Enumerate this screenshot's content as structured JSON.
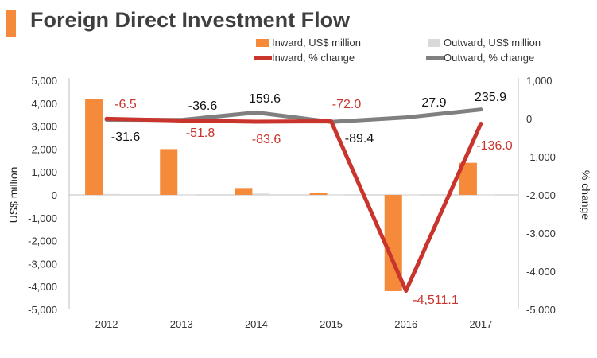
{
  "title": "Foreign Direct Investment Flow",
  "colors": {
    "accent": "#f58a3a",
    "inward": "#f58a3a",
    "outward": "#d9d9d9",
    "inward_line": "#c9342c",
    "outward_line": "#808080"
  },
  "chart_data": {
    "type": "bar",
    "title": "Foreign Direct Investment Flow",
    "categories": [
      "2012",
      "2013",
      "2014",
      "2015",
      "2016",
      "2017"
    ],
    "ylabel": "US$ million",
    "y2label": "% change",
    "ylim": [
      -5000,
      5000
    ],
    "y2lim": [
      -5000,
      1000
    ],
    "yticks": [
      "5,000",
      "4,000",
      "3,000",
      "2,000",
      "1,000",
      "0",
      "-1,000",
      "-2,000",
      "-3,000",
      "-4,000",
      "-5,000"
    ],
    "y2ticks": [
      "1,000",
      "0",
      "-1,000",
      "-2,000",
      "-3,000",
      "-4,000",
      "-5,000"
    ],
    "legend_position": "top",
    "series": [
      {
        "name": "Inward, US$ million",
        "kind": "bar",
        "axis": "left",
        "color": "#f58a3a",
        "values": [
          4200,
          2000,
          300,
          80,
          -4200,
          1400
        ]
      },
      {
        "name": "Outward, US$ million",
        "kind": "bar",
        "axis": "left",
        "color": "#d9d9d9",
        "values": [
          40,
          10,
          60,
          10,
          10,
          10
        ]
      },
      {
        "name": "Inward, % change",
        "kind": "line",
        "axis": "right",
        "color": "#c9342c",
        "values": [
          -6.5,
          -51.8,
          -83.6,
          -72.0,
          -4511.1,
          -136.0
        ],
        "labels": [
          "-6.5",
          "-51.8",
          "-83.6",
          "-72.0",
          "-4,511.1",
          "-136.0"
        ]
      },
      {
        "name": "Outward, % change",
        "kind": "line",
        "axis": "right",
        "color": "#808080",
        "values": [
          -31.6,
          -36.6,
          159.6,
          -89.4,
          27.9,
          235.9
        ],
        "labels": [
          "-31.6",
          "-36.6",
          "159.6",
          "-89.4",
          "27.9",
          "235.9"
        ]
      }
    ]
  }
}
